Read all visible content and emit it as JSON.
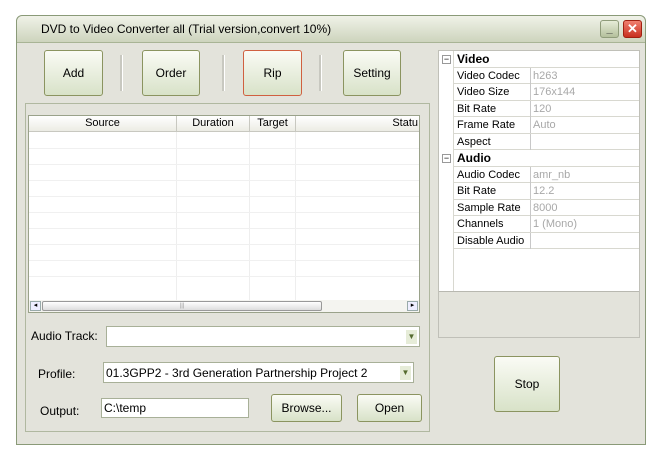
{
  "window": {
    "title": "DVD to Video Converter all (Trial version,convert 10%)",
    "minimize_glyph": "_",
    "close_glyph": "✕"
  },
  "toolbar": {
    "add": "Add",
    "order": "Order",
    "rip": "Rip",
    "setting": "Setting"
  },
  "table": {
    "columns": [
      "Source",
      "Duration",
      "Target",
      "Statu"
    ],
    "rows": [],
    "scroll_left": "◂",
    "scroll_right": "▸",
    "thumb_grip": "|||"
  },
  "form": {
    "audio_track_label": "Audio Track:",
    "audio_track_value": "",
    "profile_label": "Profile:",
    "profile_value": "01.3GPP2 - 3rd Generation Partnership Project 2",
    "output_label": "Output:",
    "output_value": "C:\\temp",
    "browse": "Browse...",
    "open": "Open",
    "dropdown_glyph": "▼"
  },
  "properties": {
    "collapse_glyph": "−",
    "video": {
      "label": "Video",
      "rows": [
        {
          "name": "Video Codec",
          "value": "h263"
        },
        {
          "name": "Video Size",
          "value": "176x144"
        },
        {
          "name": "Bit Rate",
          "value": "120"
        },
        {
          "name": "Frame Rate",
          "value": "Auto"
        },
        {
          "name": "Aspect",
          "value": ""
        }
      ]
    },
    "audio": {
      "label": "Audio",
      "rows": [
        {
          "name": "Audio Codec",
          "value": "amr_nb"
        },
        {
          "name": "Bit Rate",
          "value": "12.2"
        },
        {
          "name": "Sample Rate",
          "value": "8000"
        },
        {
          "name": "Channels",
          "value": "1 (Mono)"
        },
        {
          "name": "Disable Audio",
          "value": ""
        }
      ]
    }
  },
  "stop": "Stop",
  "colors": {
    "rip_border": "#d06040",
    "button_border": "#8b9460",
    "window_bg": "#e3e3db"
  }
}
